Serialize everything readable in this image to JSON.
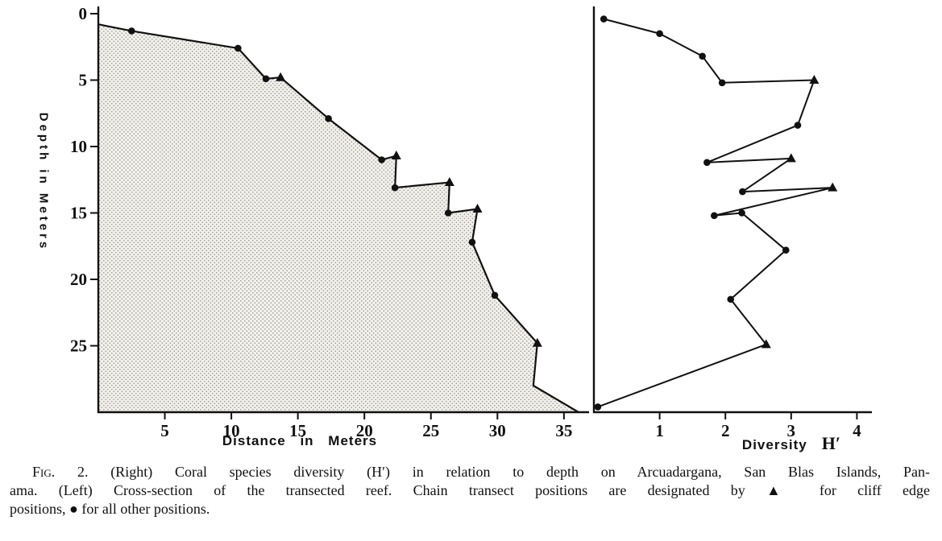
{
  "figure": {
    "caption": {
      "label": "Fig. 2.",
      "line1_rest": "(Right) Coral species diversity (H′) in relation to depth on Arcuadargana, San Blas Islands, Pan-",
      "line2": "ama. (Left) Cross-section of the transected reef. Chain transect positions are designated by ▲ for cliff edge",
      "line3": "positions, ● for all other positions."
    }
  },
  "colors": {
    "ink": "#111111",
    "stipple_dot": "#8e8e8e",
    "stipple_bg": "#f2f0ea"
  },
  "chart_data": [
    {
      "type": "area",
      "xlabel": "Distance in Meters",
      "ylabel": "Depth in Meters",
      "xlim": [
        0,
        36.5
      ],
      "ylim": [
        0,
        30
      ],
      "y_direction": "depth increases downward",
      "xticks": [
        5,
        10,
        15,
        20,
        25,
        30,
        35
      ],
      "yticks": [
        0,
        5,
        10,
        15,
        20,
        25
      ],
      "grid": false,
      "marker_meaning": {
        "triangle": "cliff edge positions",
        "circle": "all other positions"
      },
      "profile": [
        {
          "x": 0.0,
          "depth": 0.8,
          "marker": "none"
        },
        {
          "x": 2.5,
          "depth": 1.3,
          "marker": "circle"
        },
        {
          "x": 10.5,
          "depth": 2.6,
          "marker": "circle"
        },
        {
          "x": 12.6,
          "depth": 4.9,
          "marker": "circle"
        },
        {
          "x": 13.7,
          "depth": 4.8,
          "marker": "triangle"
        },
        {
          "x": 17.3,
          "depth": 7.9,
          "marker": "circle"
        },
        {
          "x": 21.3,
          "depth": 11.0,
          "marker": "circle"
        },
        {
          "x": 22.4,
          "depth": 10.7,
          "marker": "triangle"
        },
        {
          "x": 22.3,
          "depth": 13.1,
          "marker": "circle"
        },
        {
          "x": 26.4,
          "depth": 12.7,
          "marker": "triangle"
        },
        {
          "x": 26.3,
          "depth": 15.0,
          "marker": "circle"
        },
        {
          "x": 28.5,
          "depth": 14.7,
          "marker": "triangle"
        },
        {
          "x": 28.1,
          "depth": 17.2,
          "marker": "circle"
        },
        {
          "x": 29.8,
          "depth": 21.2,
          "marker": "circle"
        },
        {
          "x": 33.0,
          "depth": 24.8,
          "marker": "triangle"
        },
        {
          "x": 32.7,
          "depth": 28.0,
          "marker": "none"
        },
        {
          "x": 36.1,
          "depth": 30.0,
          "marker": "none"
        }
      ]
    },
    {
      "type": "line",
      "xlabel": "Diversity",
      "xlabel_symbol": "H′",
      "xlim": [
        0,
        4
      ],
      "ylim": [
        0,
        30
      ],
      "xticks": [
        1,
        2,
        3,
        4
      ],
      "grid": false,
      "marker_meaning": {
        "triangle": "cliff edge positions",
        "circle": "all other positions"
      },
      "points": [
        {
          "h": 0.15,
          "depth": 0.4,
          "marker": "circle"
        },
        {
          "h": 1.0,
          "depth": 1.5,
          "marker": "circle"
        },
        {
          "h": 1.65,
          "depth": 3.2,
          "marker": "circle"
        },
        {
          "h": 1.95,
          "depth": 5.2,
          "marker": "circle"
        },
        {
          "h": 3.35,
          "depth": 5.0,
          "marker": "triangle"
        },
        {
          "h": 3.1,
          "depth": 8.4,
          "marker": "circle"
        },
        {
          "h": 1.72,
          "depth": 11.2,
          "marker": "circle"
        },
        {
          "h": 3.0,
          "depth": 10.9,
          "marker": "triangle"
        },
        {
          "h": 2.26,
          "depth": 13.4,
          "marker": "circle"
        },
        {
          "h": 3.63,
          "depth": 13.1,
          "marker": "triangle"
        },
        {
          "h": 1.83,
          "depth": 15.2,
          "marker": "circle"
        },
        {
          "h": 2.25,
          "depth": 15.0,
          "marker": "circle"
        },
        {
          "h": 2.92,
          "depth": 17.8,
          "marker": "circle"
        },
        {
          "h": 2.08,
          "depth": 21.5,
          "marker": "circle"
        },
        {
          "h": 2.62,
          "depth": 24.9,
          "marker": "triangle"
        },
        {
          "h": 0.06,
          "depth": 29.6,
          "marker": "circle"
        }
      ]
    }
  ]
}
